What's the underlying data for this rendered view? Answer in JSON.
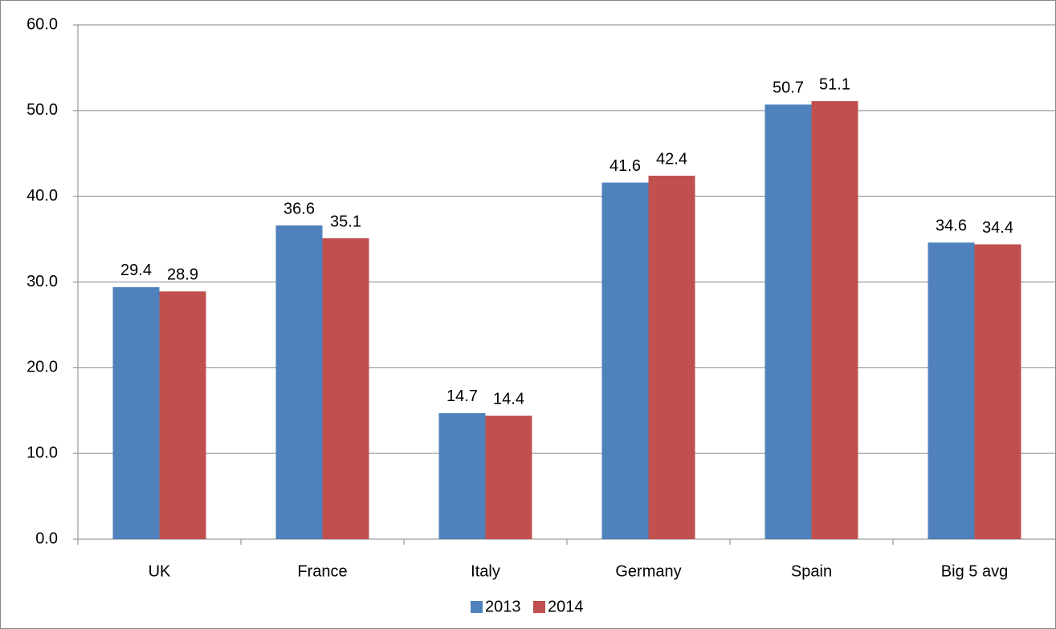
{
  "chart_data": {
    "type": "bar",
    "categories": [
      "UK",
      "France",
      "Italy",
      "Germany",
      "Spain",
      "Big 5 avg"
    ],
    "series": [
      {
        "name": "2013",
        "color": "#4f81bd",
        "values": [
          29.4,
          36.6,
          14.7,
          41.6,
          50.7,
          34.6
        ]
      },
      {
        "name": "2014",
        "color": "#c0504d",
        "values": [
          28.9,
          35.1,
          14.4,
          42.4,
          51.1,
          34.4
        ]
      }
    ],
    "ylim": [
      0,
      60
    ],
    "yticks": [
      {
        "value": 0,
        "label": "0.0"
      },
      {
        "value": 10,
        "label": "10.0"
      },
      {
        "value": 20,
        "label": "20.0"
      },
      {
        "value": 30,
        "label": "30.0"
      },
      {
        "value": 40,
        "label": "40.0"
      },
      {
        "value": 50,
        "label": "50.0"
      },
      {
        "value": 60,
        "label": "60.0"
      }
    ],
    "grid": true,
    "legend": "bottom"
  }
}
